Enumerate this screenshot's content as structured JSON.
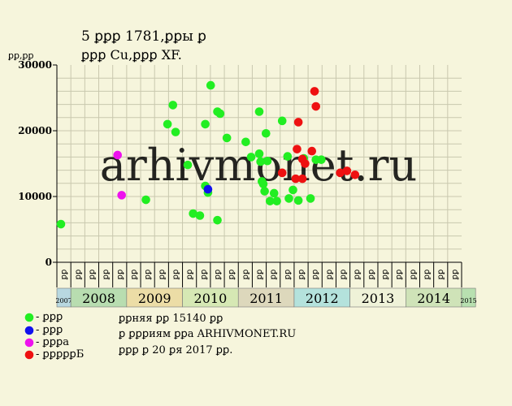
{
  "chart_data": {
    "type": "scatter",
    "title_line1": "5 ꝑꝑꝑ 1781,ꝑꝑы ꝑ",
    "title_line2": "ꝑꝑꝑ Cu,ꝑꝑꝑ XF.",
    "ylabel": "ꝑꝑ,ꝑꝑ",
    "ylim": [
      0,
      30000
    ],
    "yticks": [
      0,
      10000,
      20000,
      30000
    ],
    "ytick_labels": [
      "0",
      "10000",
      "20000",
      "30000"
    ],
    "grid": true,
    "watermark": "arhivmonet.ru",
    "period_labels": [
      "ꝑꝑ",
      "ꝑꝑ",
      "ꝑꝑ",
      "ꝑꝑ",
      "ꝑꝑ",
      "ꝑꝑ",
      "ꝑꝑ",
      "ꝑꝑ",
      "ꝑꝑ",
      "ꝑꝑ",
      "ꝑꝑ",
      "ꝑꝑ",
      "ꝑꝑ",
      "ꝑꝑ",
      "ꝑꝑ",
      "ꝑꝑ",
      "ꝑꝑ",
      "ꝑꝑ",
      "ꝑꝑ",
      "ꝑꝑ",
      "ꝑꝑ",
      "ꝑꝑ",
      "ꝑꝑ",
      "ꝑꝑ",
      "ꝑꝑ",
      "ꝑꝑ",
      "ꝑꝑ",
      "ꝑꝑ",
      "ꝑꝑ",
      "ꝑꝑ",
      "ꝑꝑ",
      "ꝑꝑ",
      "ꝑꝑ",
      "ꝑꝑ",
      "ꝑꝑ",
      "ꝑꝑ",
      "ꝑꝑ",
      "ꝑꝑ",
      "ꝑꝑ",
      "ꝑꝑ",
      "ꝑꝑ",
      "ꝑꝑ",
      "ꝑꝑ",
      "ꝑꝑ",
      "ꝑꝑ",
      "ꝑꝑ",
      "ꝑꝑ",
      "ꝑꝑ",
      "ꝑꝑ",
      "ꝑꝑ",
      "ꝑꝑ",
      "ꝑꝑ",
      "ꝑꝑ",
      "ꝑꝑ",
      "ꝑꝑ",
      "ꝑꝑ",
      "ꝑꝑ",
      "ꝑꝑ",
      "ꝑꝑ",
      "ꝑꝑ",
      "ꝑꝑ",
      "ꝑꝑ",
      "ꝑꝑ",
      "ꝑꝑ",
      "ꝑꝑ",
      "ꝑꝑ",
      "ꝑꝑ",
      "ꝑꝑ",
      "ꝑꝑ",
      "ꝑꝑ",
      "ꝑꝑ",
      "ꝑꝑ",
      "ꝑꝑ",
      "ꝑꝑ",
      "ꝑꝑ",
      "ꝑꝑ",
      "ꝑꝑ",
      "ꝑꝑ",
      "ꝑꝑ",
      "ꝑꝑ",
      "ꝑꝑ",
      "ꝑꝑ",
      "ꝑꝑ",
      "ꝑꝑ",
      "ꝑꝑ",
      "ꝑꝑ",
      "ꝑꝑ",
      "ꝑꝑ",
      "ꝑꝑ",
      "ꝑꝑ",
      "ꝑꝑ",
      "ꝑꝑ",
      "ꝑꝑ",
      "ꝑꝑ",
      "ꝑꝑ",
      "ꝑꝑ",
      "ꝑꝑ",
      "ꝑꝑ",
      "ꝑꝑ",
      "ꝑꝑ",
      "ꝑꝑ",
      "ꝑꝑ",
      "ꝑꝑ",
      "ꝑꝑ",
      "ꝑꝑ",
      "ꝑꝑ",
      "ꝑꝑ",
      "ꝑꝑ",
      "ꝑꝑ",
      "ꝑꝑ",
      "ꝑꝑ",
      "ꝑꝑ",
      "ꝑꝑ",
      "ꝑꝑ",
      "ꝑꝑ",
      "ꝑꝑ",
      "ꝑꝑ",
      "ꝑꝑ",
      "ꝑꝑ",
      "ꝑꝑ",
      "ꝑꝑ",
      "ꝑꝑ",
      "ꝑꝑ",
      "ꝑꝑ",
      "ꝑꝑ",
      "ꝑꝑ",
      "ꝑꝑ",
      "ꝑꝑ",
      "ꝑꝑ",
      "ꝑꝑ"
    ],
    "period_labels_count_shown": 29,
    "years": [
      {
        "label": "2007",
        "periods": 1,
        "color": "#b8d8e0",
        "small": true
      },
      {
        "label": "2008",
        "periods": 4,
        "color": "#b8ddb0",
        "small": false
      },
      {
        "label": "2009",
        "periods": 4,
        "color": "#ecdda6",
        "small": false
      },
      {
        "label": "2010",
        "periods": 4,
        "color": "#d6e8b4",
        "small": false
      },
      {
        "label": "2011",
        "periods": 4,
        "color": "#ddd8bc",
        "small": false
      },
      {
        "label": "2012",
        "periods": 4,
        "color": "#b4e2dc",
        "small": false
      },
      {
        "label": "2013",
        "periods": 4,
        "color": "#eff2d8",
        "small": false
      },
      {
        "label": "2014",
        "periods": 4,
        "color": "#cfe3b8",
        "small": false
      },
      {
        "label": "2015",
        "periods": 1,
        "color": "#b8e0b0",
        "small": true
      }
    ],
    "x_range": [
      0,
      30
    ],
    "series": [
      {
        "legend": "- ꝑꝑꝑ",
        "color": "#22ee22",
        "points": [
          [
            0.3,
            5800
          ],
          [
            6.6,
            9500
          ],
          [
            8.2,
            21000
          ],
          [
            8.6,
            23900
          ],
          [
            8.8,
            19800
          ],
          [
            9.7,
            14800
          ],
          [
            10.1,
            7400
          ],
          [
            10.6,
            7100
          ],
          [
            11.0,
            21000
          ],
          [
            11.0,
            11600
          ],
          [
            11.2,
            10600
          ],
          [
            11.4,
            26900
          ],
          [
            11.9,
            22900
          ],
          [
            12.1,
            22600
          ],
          [
            11.9,
            6400
          ],
          [
            12.6,
            18900
          ],
          [
            14.0,
            18300
          ],
          [
            14.4,
            16000
          ],
          [
            15.0,
            16500
          ],
          [
            15.0,
            22900
          ],
          [
            15.1,
            15300
          ],
          [
            15.2,
            12300
          ],
          [
            15.3,
            11900
          ],
          [
            15.4,
            10800
          ],
          [
            15.5,
            19600
          ],
          [
            15.6,
            15400
          ],
          [
            15.8,
            9300
          ],
          [
            16.1,
            10500
          ],
          [
            16.3,
            9300
          ],
          [
            16.7,
            21500
          ],
          [
            17.1,
            16100
          ],
          [
            17.2,
            9700
          ],
          [
            17.5,
            11000
          ],
          [
            17.9,
            9400
          ],
          [
            18.3,
            15800
          ],
          [
            18.8,
            9700
          ],
          [
            19.2,
            15600
          ],
          [
            19.6,
            15600
          ]
        ]
      },
      {
        "legend": "- ꝑꝑꝑ",
        "color": "#1111ee",
        "points": [
          [
            11.2,
            11100
          ]
        ]
      },
      {
        "legend": "- ꝑꝑꝑа",
        "color": "#ee11ee",
        "points": [
          [
            4.5,
            16300
          ],
          [
            4.8,
            10200
          ]
        ]
      },
      {
        "legend": "- ꝑꝑꝑꝑꝑБ",
        "color": "#ee1111",
        "points": [
          [
            16.7,
            13600
          ],
          [
            17.7,
            12700
          ],
          [
            17.8,
            17200
          ],
          [
            17.9,
            21300
          ],
          [
            18.2,
            12700
          ],
          [
            18.2,
            15700
          ],
          [
            18.4,
            15000
          ],
          [
            18.9,
            16900
          ],
          [
            19.1,
            26000
          ],
          [
            19.2,
            23700
          ],
          [
            21.0,
            13600
          ],
          [
            21.5,
            13900
          ],
          [
            22.1,
            13300
          ]
        ]
      }
    ]
  },
  "notes": {
    "line1": "ꝑꝑняя ꝑꝑ 15140 ꝑꝑ",
    "line2": "ꝑ ꝑꝑꝑиям ꝑꝑа ARHIVMONET.RU",
    "line3": "ꝑꝑꝑ ꝑ 20 ꝑя 2017 ꝑꝑ."
  }
}
